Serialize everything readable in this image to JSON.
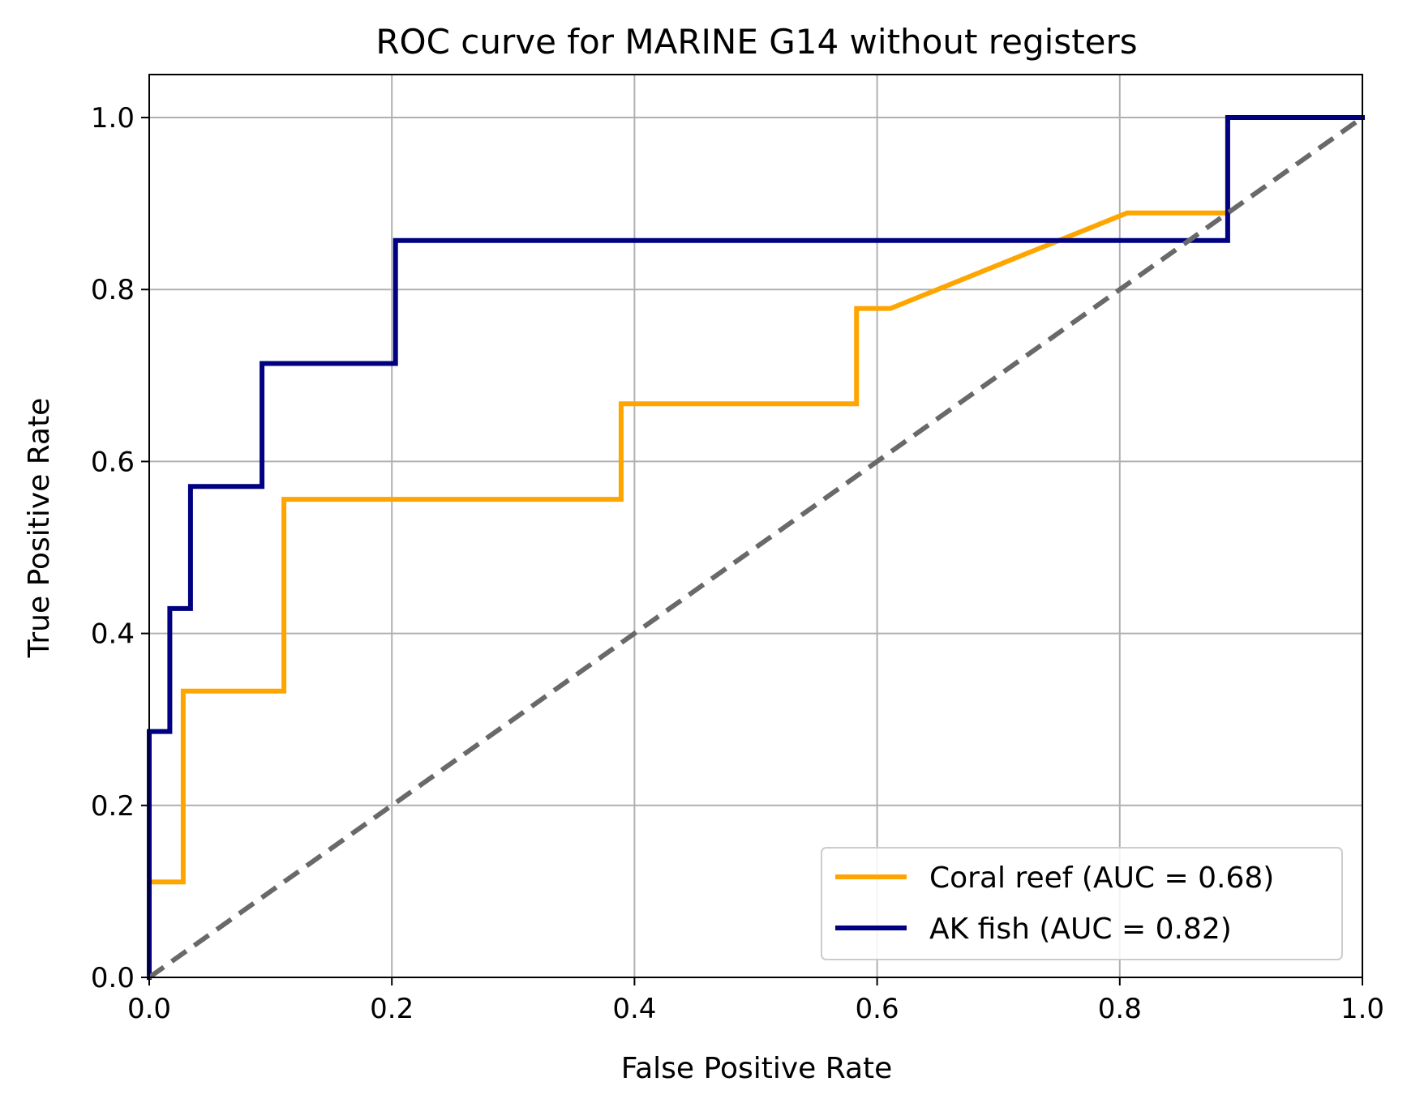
{
  "chart_data": {
    "type": "line",
    "title": "ROC curve for MARINE G14 without registers",
    "xlabel": "False Positive Rate",
    "ylabel": "True Positive Rate",
    "xlim": [
      0.0,
      1.0
    ],
    "ylim": [
      0.0,
      1.05
    ],
    "xticks": [
      "0.0",
      "0.2",
      "0.4",
      "0.6",
      "0.8",
      "1.0"
    ],
    "yticks": [
      "0.0",
      "0.2",
      "0.4",
      "0.6",
      "0.8",
      "1.0"
    ],
    "grid": true,
    "legend_position": "lower-right",
    "series": [
      {
        "name": "Coral reef (AUC = 0.68)",
        "color": "#FFA500",
        "x": [
          0.0,
          0.0,
          0.028,
          0.028,
          0.111,
          0.111,
          0.389,
          0.389,
          0.583,
          0.583,
          0.611,
          0.806,
          0.889,
          0.889,
          1.0
        ],
        "y": [
          0.0,
          0.111,
          0.111,
          0.333,
          0.333,
          0.556,
          0.556,
          0.667,
          0.667,
          0.778,
          0.778,
          0.889,
          0.889,
          1.0,
          1.0
        ]
      },
      {
        "name": "AK fish (AUC = 0.82)",
        "color": "#000080",
        "x": [
          0.0,
          0.0,
          0.017,
          0.017,
          0.034,
          0.034,
          0.093,
          0.093,
          0.203,
          0.203,
          0.889,
          0.889,
          1.0
        ],
        "y": [
          0.0,
          0.286,
          0.286,
          0.429,
          0.429,
          0.571,
          0.571,
          0.714,
          0.714,
          0.857,
          0.857,
          1.0,
          1.0
        ]
      }
    ],
    "reference_line": {
      "x": [
        0.0,
        1.0
      ],
      "y": [
        0.0,
        1.0
      ],
      "color": "#696969",
      "style": "dashed"
    }
  }
}
